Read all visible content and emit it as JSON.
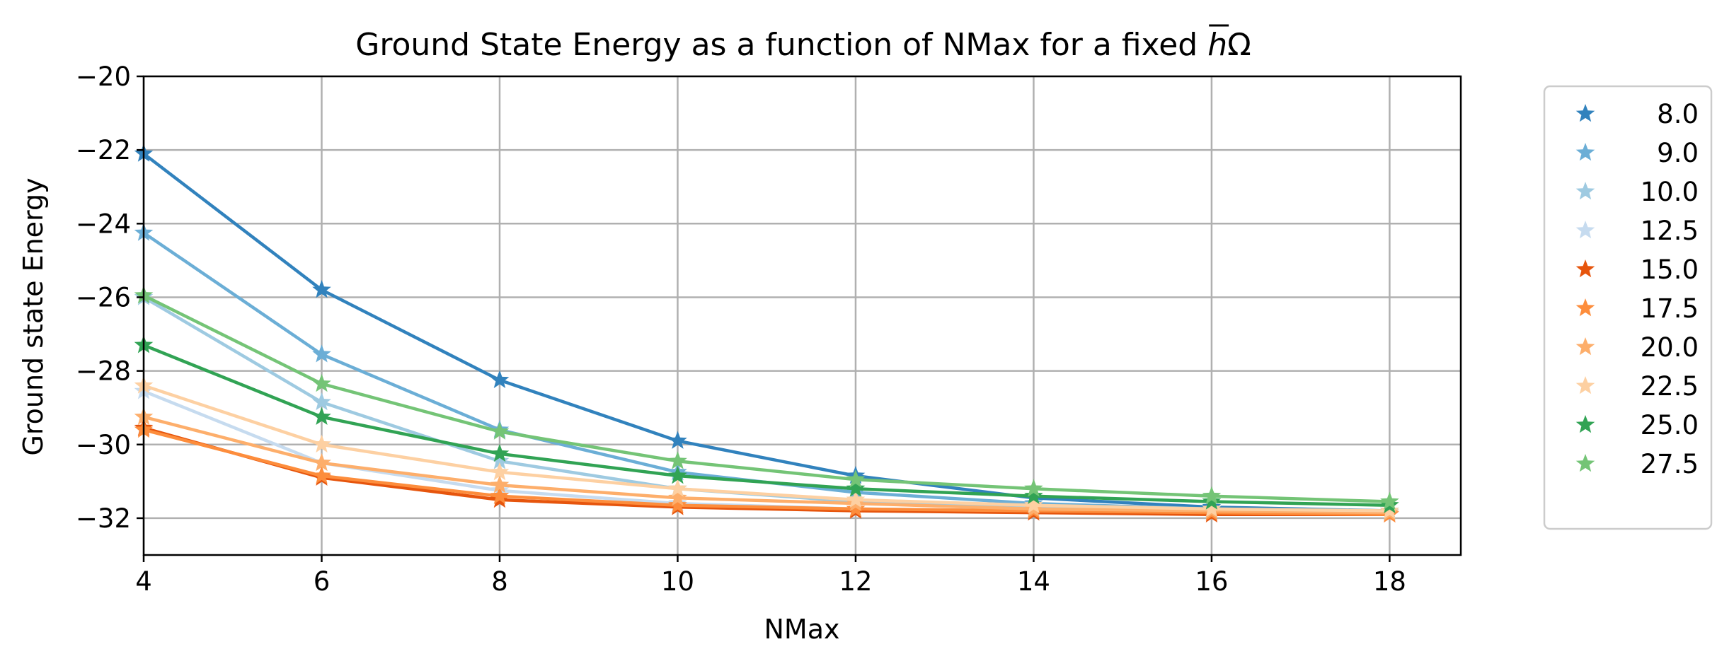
{
  "chart_data": {
    "type": "line",
    "title": "Ground State Energy as a function of NMax for a fixed ",
    "title_symbol_h": "h",
    "title_symbol_omega": "Ω",
    "xlabel": "NMax",
    "ylabel": "Ground state Energy",
    "x": [
      4,
      6,
      8,
      10,
      12,
      14,
      16,
      18
    ],
    "xlim": [
      4,
      18.8
    ],
    "ylim": [
      -33,
      -20
    ],
    "xticks": [
      4,
      6,
      8,
      10,
      12,
      14,
      16,
      18
    ],
    "yticks": [
      -20,
      -22,
      -24,
      -26,
      -28,
      -30,
      -32
    ],
    "grid": true,
    "legend_position": "outside-right",
    "marker": "star",
    "series": [
      {
        "name": "8.0",
        "color": "#3182bd",
        "values": [
          -22.1,
          -25.8,
          -28.25,
          -29.9,
          -30.85,
          -31.45,
          -31.7,
          -31.8
        ]
      },
      {
        "name": "9.0",
        "color": "#6baed6",
        "values": [
          -24.25,
          -27.55,
          -29.6,
          -30.75,
          -31.3,
          -31.6,
          -31.75,
          -31.8
        ]
      },
      {
        "name": "10.0",
        "color": "#9ecae1",
        "values": [
          -26.0,
          -28.85,
          -30.45,
          -31.2,
          -31.55,
          -31.7,
          -31.8,
          -31.85
        ]
      },
      {
        "name": "12.5",
        "color": "#c6dbef",
        "values": [
          -28.55,
          -30.5,
          -31.25,
          -31.6,
          -31.75,
          -31.8,
          -31.85,
          -31.85
        ]
      },
      {
        "name": "15.0",
        "color": "#e6550d",
        "values": [
          -29.55,
          -30.9,
          -31.5,
          -31.7,
          -31.8,
          -31.85,
          -31.9,
          -31.9
        ]
      },
      {
        "name": "17.5",
        "color": "#fd8d3c",
        "values": [
          -29.6,
          -30.85,
          -31.4,
          -31.65,
          -31.75,
          -31.8,
          -31.85,
          -31.9
        ]
      },
      {
        "name": "20.0",
        "color": "#fdae6b",
        "values": [
          -29.25,
          -30.5,
          -31.1,
          -31.45,
          -31.6,
          -31.75,
          -31.8,
          -31.85
        ]
      },
      {
        "name": "22.5",
        "color": "#fdd0a2",
        "values": [
          -28.4,
          -30.0,
          -30.75,
          -31.2,
          -31.5,
          -31.65,
          -31.75,
          -31.8
        ]
      },
      {
        "name": "25.0",
        "color": "#31a354",
        "values": [
          -27.3,
          -29.25,
          -30.25,
          -30.85,
          -31.2,
          -31.4,
          -31.55,
          -31.65
        ]
      },
      {
        "name": "27.5",
        "color": "#74c476",
        "values": [
          -25.95,
          -28.35,
          -29.65,
          -30.45,
          -30.95,
          -31.2,
          -31.4,
          -31.55
        ]
      }
    ]
  }
}
